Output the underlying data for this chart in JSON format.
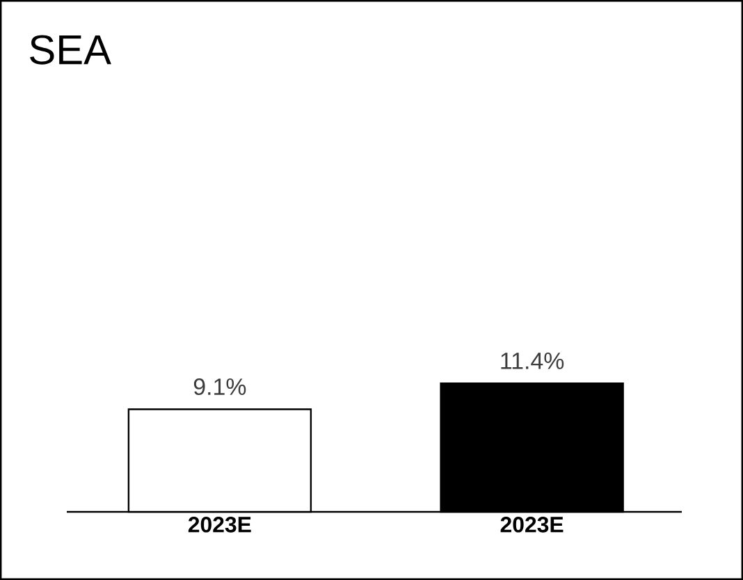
{
  "chart_data": {
    "type": "bar",
    "title": "SEA",
    "categories": [
      "2023E",
      "2023E"
    ],
    "values": [
      9.1,
      11.4
    ],
    "colors": [
      "#ffffff",
      "#000000"
    ],
    "value_labels": [
      "9.1%",
      "11.4%"
    ]
  }
}
